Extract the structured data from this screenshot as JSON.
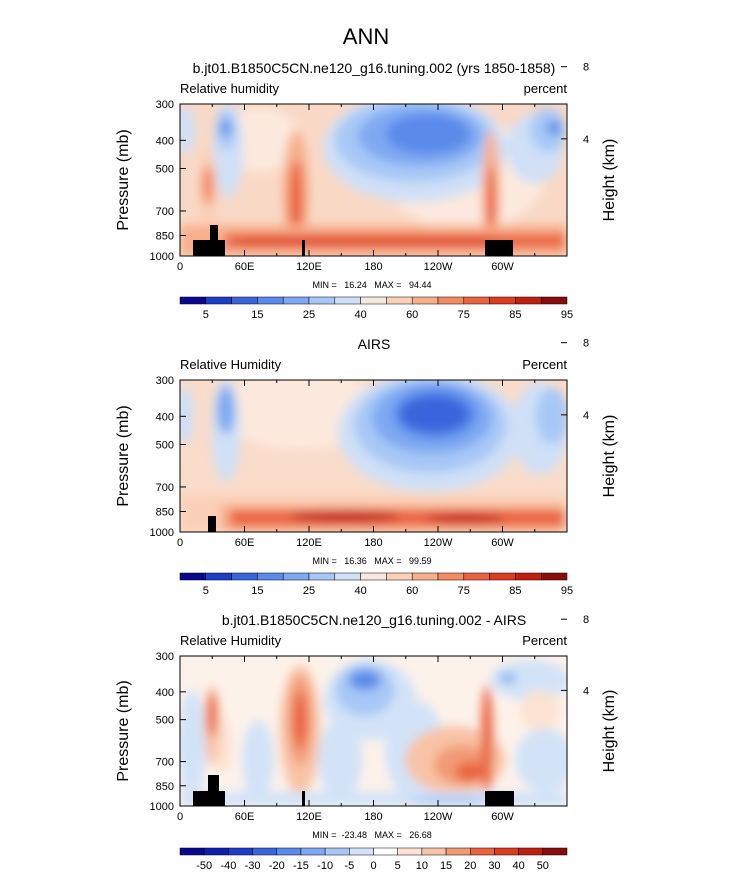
{
  "figure": {
    "title": "ANN"
  },
  "chart_data": [
    {
      "type": "heatmap",
      "title": "b.jt01.B1850C5CN.ne120_g16.tuning.002 (yrs 1850-1858)",
      "subtitle_left": "Relative humidity",
      "subtitle_right": "percent",
      "ylabel": "Pressure (mb)",
      "ylabel_right": "Height (km)",
      "y_ticks": [
        "300",
        "400",
        "500",
        "700",
        "850",
        "1000"
      ],
      "y_right_ticks": [
        "8",
        "4"
      ],
      "x_ticks": [
        "0",
        "60E",
        "120E",
        "180",
        "120W",
        "60W"
      ],
      "stats": "MIN =   16.24   MAX =   94.44",
      "colorbar_labels": [
        "5",
        "15",
        "25",
        "40",
        "60",
        "75",
        "85",
        "95"
      ],
      "colors": [
        "#08088f",
        "#1d3ec9",
        "#3a64dc",
        "#5a8aea",
        "#7ea9f2",
        "#a7c8f6",
        "#cfe0f7",
        "#f7e8df",
        "#fbd0b8",
        "#f8b08c",
        "#f28a64",
        "#ea6341",
        "#dc3c20",
        "#c01f0f",
        "#8b0a0a"
      ]
    },
    {
      "type": "heatmap",
      "title": "AIRS",
      "subtitle_left": "Relative Humidity",
      "subtitle_right": "Percent",
      "ylabel": "Pressure (mb)",
      "ylabel_right": "Height (km)",
      "y_ticks": [
        "300",
        "400",
        "500",
        "700",
        "850",
        "1000"
      ],
      "y_right_ticks": [
        "8",
        "4"
      ],
      "x_ticks": [
        "0",
        "60E",
        "120E",
        "180",
        "120W",
        "60W"
      ],
      "stats": "MIN =   16.36   MAX =   99.59",
      "colorbar_labels": [
        "5",
        "15",
        "25",
        "40",
        "60",
        "75",
        "85",
        "95"
      ],
      "colors": [
        "#08088f",
        "#1d3ec9",
        "#3a64dc",
        "#5a8aea",
        "#7ea9f2",
        "#a7c8f6",
        "#cfe0f7",
        "#f7e8df",
        "#fbd0b8",
        "#f8b08c",
        "#f28a64",
        "#ea6341",
        "#dc3c20",
        "#c01f0f",
        "#8b0a0a"
      ]
    },
    {
      "type": "heatmap",
      "title": "b.jt01.B1850C5CN.ne120_g16.tuning.002 - AIRS",
      "subtitle_left": "Relative Humidity",
      "subtitle_right": "Percent",
      "ylabel": "Pressure (mb)",
      "ylabel_right": "Height (km)",
      "y_ticks": [
        "300",
        "400",
        "500",
        "700",
        "850",
        "1000"
      ],
      "y_right_ticks": [
        "8",
        "4"
      ],
      "x_ticks": [
        "0",
        "60E",
        "120E",
        "180",
        "120W",
        "60W"
      ],
      "stats": "MIN =  -23.48   MAX =   26.68",
      "colorbar_labels": [
        "-50",
        "-40",
        "-30",
        "-20",
        "-15",
        "-10",
        "-5",
        "0",
        "5",
        "10",
        "15",
        "20",
        "30",
        "40",
        "50"
      ],
      "colors": [
        "#08088f",
        "#0d1fb0",
        "#1d3ec9",
        "#3a64dc",
        "#5a8aea",
        "#7ea9f2",
        "#a7c8f6",
        "#d2e3f8",
        "#ffffff",
        "#fbe2d2",
        "#f8c3a6",
        "#f29a74",
        "#ea6341",
        "#dc3c20",
        "#c01f0f",
        "#8b0a0a"
      ]
    }
  ]
}
